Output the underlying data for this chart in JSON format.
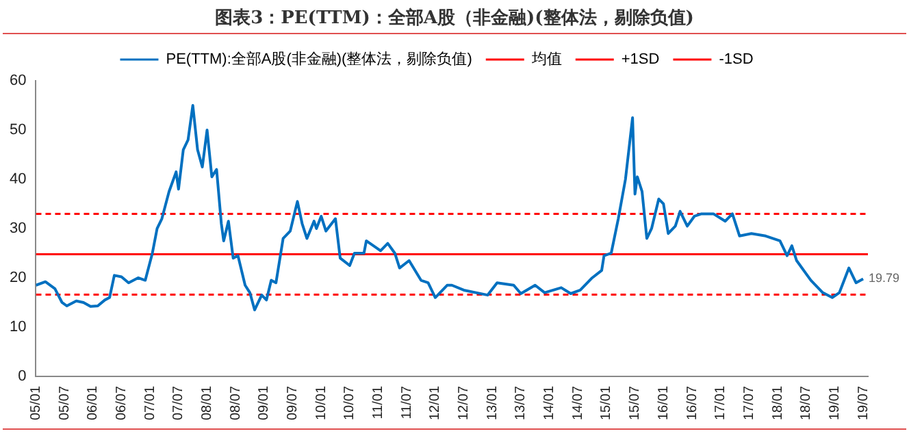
{
  "chart_data": {
    "type": "line",
    "title": "图表3：PE(TTM)：全部A股（非金融)(整体法，剔除负值)",
    "x": [
      "2005-01-01",
      "2005-03-01",
      "2005-05-01",
      "2005-06-16",
      "2005-07-16",
      "2005-09-16",
      "2005-11-01",
      "2005-12-16",
      "2006-02-01",
      "2006-03-16",
      "2006-04-16",
      "2006-05-16",
      "2006-07-01",
      "2006-08-16",
      "2006-10-16",
      "2006-12-01",
      "2007-01-16",
      "2007-02-16",
      "2007-03-16",
      "2007-05-01",
      "2007-06-16",
      "2007-07-01",
      "2007-08-01",
      "2007-09-01",
      "2007-10-01",
      "2007-11-01",
      "2007-12-01",
      "2008-01-01",
      "2008-02-01",
      "2008-03-01",
      "2008-04-01",
      "2008-04-16",
      "2008-05-16",
      "2008-06-16",
      "2008-07-16",
      "2008-09-01",
      "2008-10-01",
      "2008-11-01",
      "2008-12-16",
      "2009-01-16",
      "2009-02-16",
      "2009-03-16",
      "2009-05-01",
      "2009-06-16",
      "2009-08-01",
      "2009-09-01",
      "2009-10-01",
      "2009-11-16",
      "2009-12-01",
      "2010-01-01",
      "2010-02-01",
      "2010-04-01",
      "2010-05-01",
      "2010-07-01",
      "2010-08-01",
      "2010-10-01",
      "2010-10-16",
      "2010-12-01",
      "2011-01-16",
      "2011-03-01",
      "2011-04-16",
      "2011-05-16",
      "2011-07-16",
      "2011-10-01",
      "2011-11-16",
      "2012-01-01",
      "2012-03-16",
      "2012-04-16",
      "2012-07-01",
      "2012-12-01",
      "2013-02-01",
      "2013-05-16",
      "2013-07-01",
      "2013-10-01",
      "2013-12-01",
      "2014-03-16",
      "2014-05-16",
      "2014-07-16",
      "2014-10-01",
      "2014-12-01",
      "2014-12-16",
      "2015-02-01",
      "2015-03-16",
      "2015-05-01",
      "2015-06-16",
      "2015-07-01",
      "2015-07-16",
      "2015-08-16",
      "2015-09-16",
      "2015-10-16",
      "2015-12-01",
      "2016-01-01",
      "2016-02-01",
      "2016-03-16",
      "2016-04-16",
      "2016-06-01",
      "2016-07-16",
      "2016-09-01",
      "2016-11-16",
      "2017-02-01",
      "2017-03-16",
      "2017-05-01",
      "2017-07-16",
      "2017-10-16",
      "2018-01-16",
      "2018-03-01",
      "2018-04-01",
      "2018-05-01",
      "2018-08-01",
      "2018-10-16",
      "2018-12-16",
      "2019-02-01",
      "2019-04-01",
      "2019-05-16",
      "2019-07-01"
    ],
    "series": [
      {
        "name": "PE(TTM):全部A股(非金融)(整体法，剔除负值)",
        "color": "#0070c0",
        "values": [
          18.5,
          19.2,
          17.8,
          15,
          14.3,
          15.3,
          15,
          14.2,
          14.3,
          15.5,
          16,
          20.5,
          20.2,
          19,
          20,
          19.5,
          25,
          30,
          32,
          37.5,
          41.5,
          38,
          46,
          48,
          55,
          46,
          42.5,
          50,
          40.5,
          42,
          31,
          27.5,
          31.5,
          24,
          24.5,
          18.5,
          17,
          13.5,
          16.5,
          15.5,
          19.5,
          19,
          28,
          29.5,
          35.5,
          31,
          28,
          31.5,
          30,
          32.5,
          29.5,
          32,
          24,
          22.5,
          25,
          25,
          27.5,
          26.5,
          25.5,
          27,
          25,
          22,
          23.5,
          19.5,
          19,
          16,
          18.5,
          18.5,
          17.5,
          16.5,
          19,
          18.5,
          16.8,
          18.5,
          17,
          18,
          16.8,
          17.5,
          20,
          21.5,
          24.5,
          25,
          32,
          40,
          52.5,
          37,
          40.5,
          37.5,
          28,
          30,
          36,
          35,
          29,
          30.5,
          33.5,
          30.5,
          32.5,
          33,
          33,
          31.5,
          33,
          28.5,
          29,
          28.5,
          27.5,
          24.5,
          26.5,
          23.5,
          19.5,
          17,
          16,
          17,
          22,
          19,
          19.79
        ],
        "value_labels": [
          null,
          null,
          null,
          null,
          null,
          null,
          null,
          null,
          null,
          null,
          null,
          null,
          null,
          null,
          null,
          null,
          null,
          null,
          null,
          null,
          null,
          null,
          null,
          null,
          null,
          null,
          null,
          null,
          null,
          null,
          null,
          null,
          null,
          null,
          null,
          null,
          null,
          null,
          null,
          null,
          null,
          null,
          null,
          null,
          null,
          null,
          null,
          null,
          null,
          null,
          null,
          null,
          null,
          null,
          null,
          null,
          null,
          null,
          null,
          null,
          null,
          null,
          null,
          null,
          null,
          null,
          null,
          null,
          null,
          null,
          null,
          null,
          null,
          null,
          null,
          null,
          null,
          null,
          null,
          null,
          null,
          null,
          null,
          null,
          null,
          null,
          null,
          null,
          null,
          null,
          null,
          null,
          null,
          null,
          null,
          null,
          null,
          null,
          null,
          null,
          null,
          null,
          null,
          null,
          null,
          null,
          null,
          null,
          null,
          null,
          null,
          null,
          null,
          null,
          "19.79"
        ]
      }
    ],
    "ref_lines": [
      {
        "axis": "y",
        "value": 24.8,
        "label": "均值",
        "color": "#ff0000",
        "line_style": "solid"
      },
      {
        "axis": "y",
        "value": 33,
        "label": "+1SD",
        "color": "#ff0000",
        "line_style": "dashed"
      },
      {
        "axis": "y",
        "value": 16.6,
        "label": "-1SD",
        "color": "#ff0000",
        "line_style": "dashed"
      }
    ],
    "xlim": [
      "2005-01-01",
      "2019-08-01"
    ],
    "xticks": [
      {
        "value": "2005-01",
        "label": "05/01"
      },
      {
        "value": "2005-07",
        "label": "05/07"
      },
      {
        "value": "2006-01",
        "label": "06/01"
      },
      {
        "value": "2006-07",
        "label": "06/07"
      },
      {
        "value": "2007-01",
        "label": "07/01"
      },
      {
        "value": "2007-07",
        "label": "07/07"
      },
      {
        "value": "2008-01",
        "label": "08/01"
      },
      {
        "value": "2008-07",
        "label": "08/07"
      },
      {
        "value": "2009-01",
        "label": "09/01"
      },
      {
        "value": "2009-07",
        "label": "09/07"
      },
      {
        "value": "2010-01",
        "label": "10/01"
      },
      {
        "value": "2010-07",
        "label": "10/07"
      },
      {
        "value": "2011-01",
        "label": "11/01"
      },
      {
        "value": "2011-07",
        "label": "11/07"
      },
      {
        "value": "2012-01",
        "label": "12/01"
      },
      {
        "value": "2012-07",
        "label": "12/07"
      },
      {
        "value": "2013-01",
        "label": "13/01"
      },
      {
        "value": "2013-07",
        "label": "13/07"
      },
      {
        "value": "2014-01",
        "label": "14/01"
      },
      {
        "value": "2014-07",
        "label": "14/07"
      },
      {
        "value": "2015-01",
        "label": "15/01"
      },
      {
        "value": "2015-07",
        "label": "15/07"
      },
      {
        "value": "2016-01",
        "label": "16/01"
      },
      {
        "value": "2016-07",
        "label": "16/07"
      },
      {
        "value": "2017-01",
        "label": "17/01"
      },
      {
        "value": "2017-07",
        "label": "17/07"
      },
      {
        "value": "2018-01",
        "label": "18/01"
      },
      {
        "value": "2018-07",
        "label": "18/07"
      },
      {
        "value": "2019-01",
        "label": "19/01"
      },
      {
        "value": "2019-07",
        "label": "19/07"
      }
    ],
    "ylim": [
      0,
      60
    ],
    "yticks": [
      0,
      10,
      20,
      30,
      40,
      50,
      60
    ],
    "grid": false,
    "legend": "top",
    "marker": "none",
    "line_style": "solid"
  }
}
